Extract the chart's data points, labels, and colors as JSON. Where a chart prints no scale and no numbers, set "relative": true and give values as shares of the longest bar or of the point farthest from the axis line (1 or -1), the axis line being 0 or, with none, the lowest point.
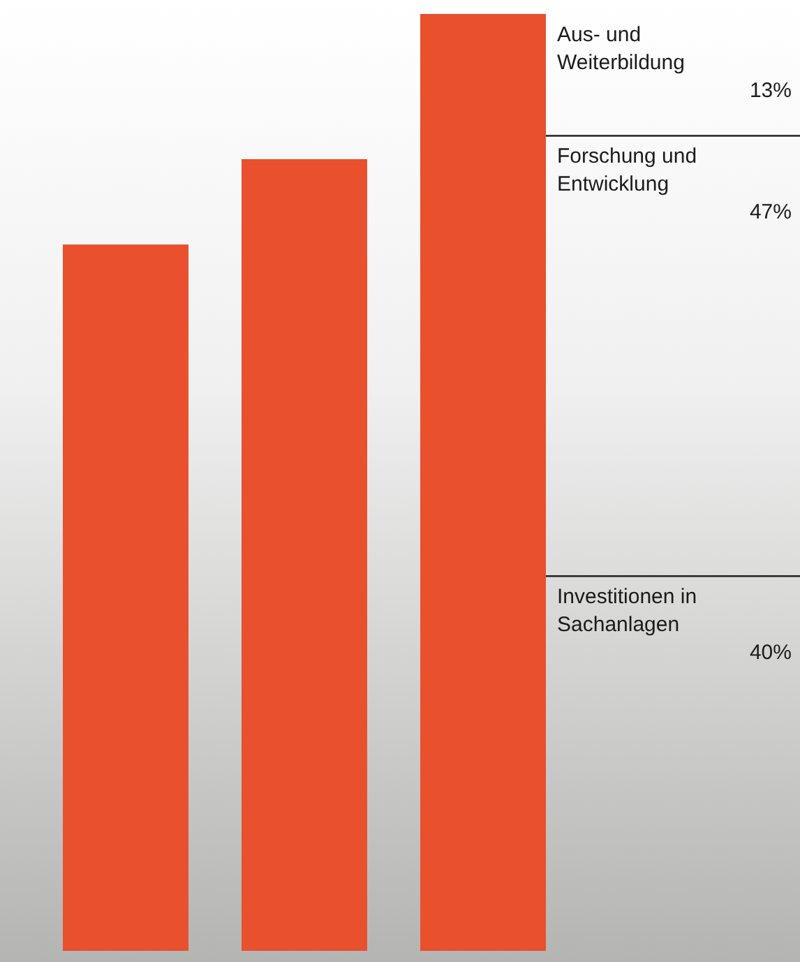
{
  "chart_data": {
    "type": "bar",
    "relative": true,
    "categories": [
      null,
      null,
      null
    ],
    "values": [
      0.754,
      0.845,
      1
    ],
    "color": "#e8502e",
    "ref_lines": [
      {
        "axis": "y",
        "value": 0.87,
        "color": "#222222"
      },
      {
        "axis": "y",
        "value": 0.4,
        "color": "#222222"
      }
    ],
    "annotations": [
      "Aus- und Weiterbildung",
      "13%",
      "Forschung und Entwicklung",
      "47%",
      "Investitionen in Sachanlagen",
      "40%"
    ]
  }
}
